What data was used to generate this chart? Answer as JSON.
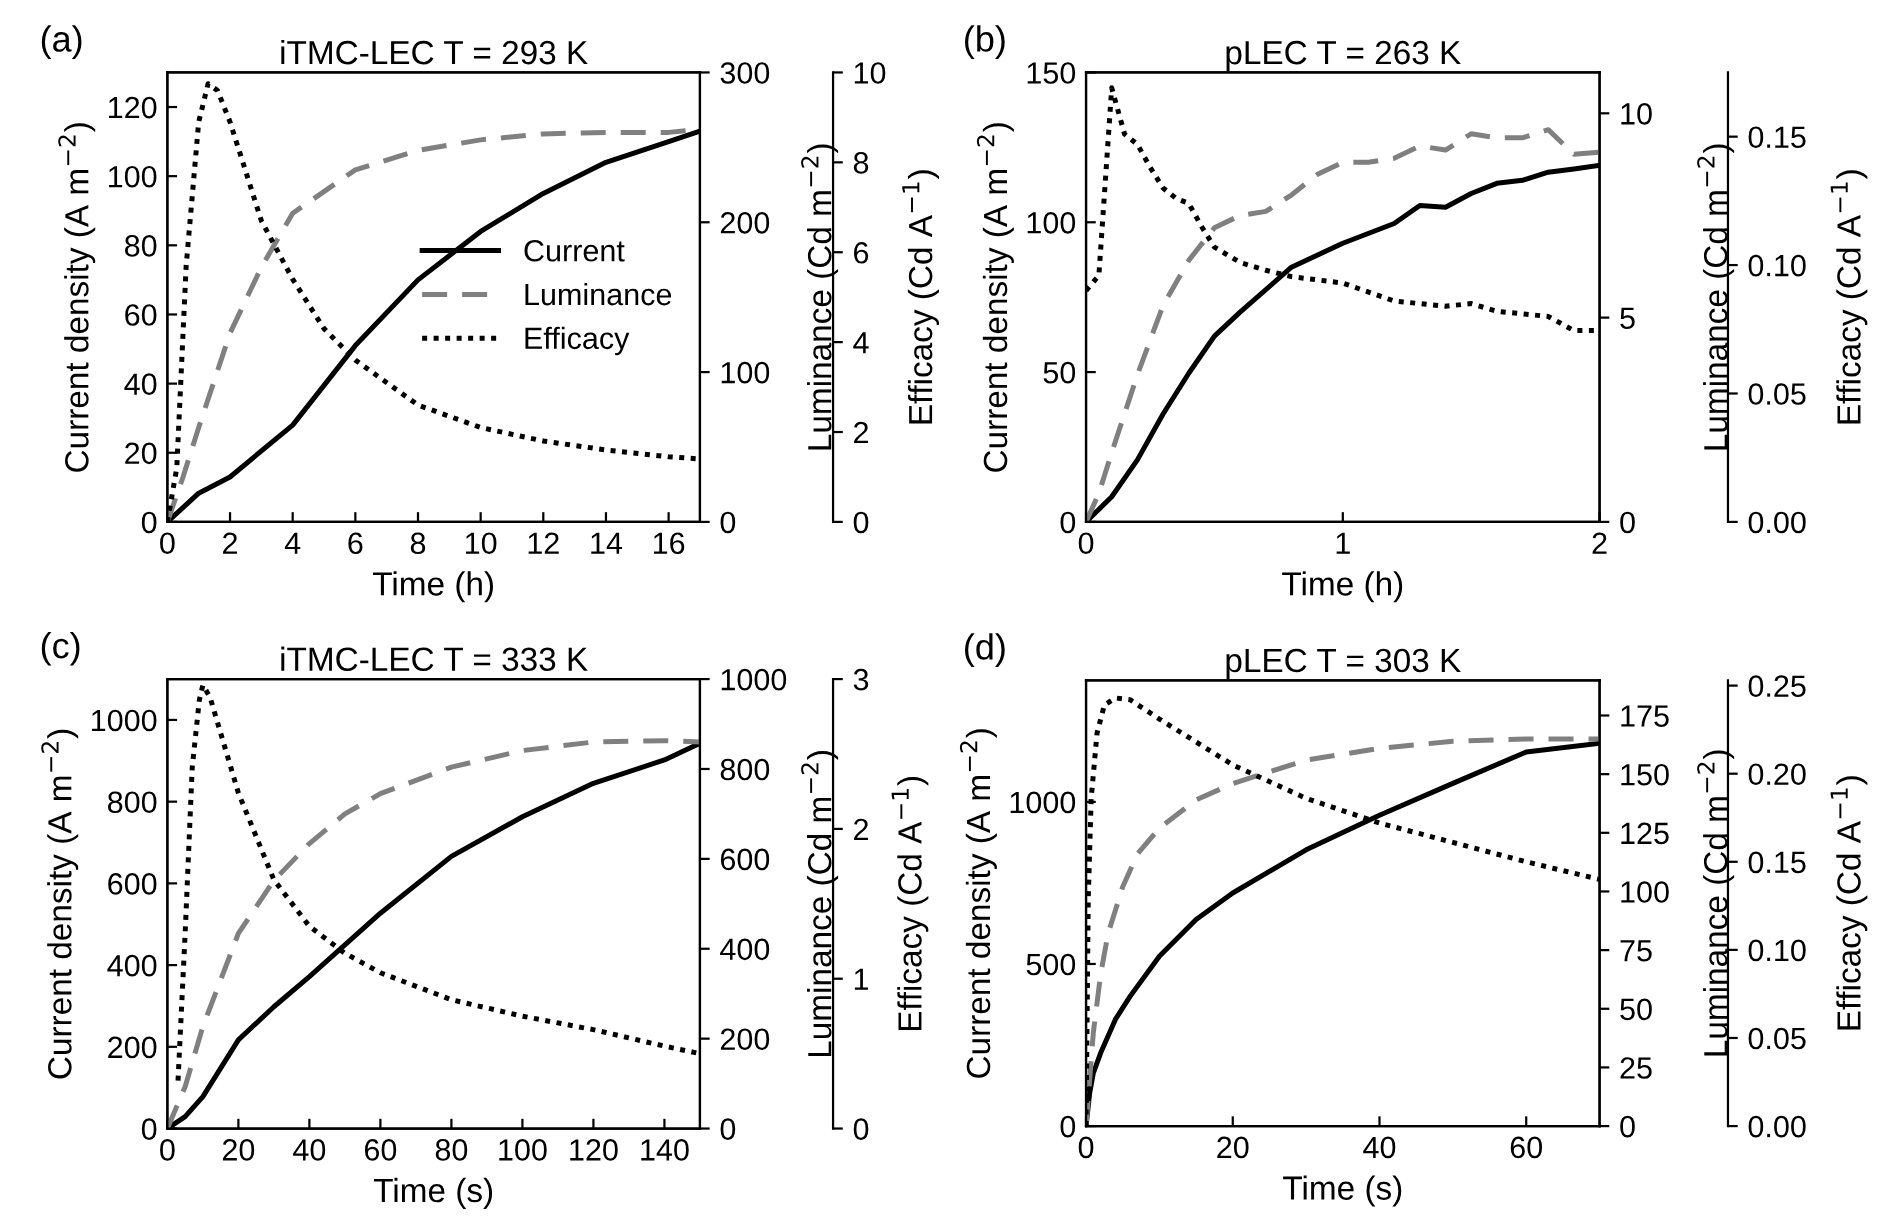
{
  "chart_data": [
    {
      "type": "line",
      "title": "iTMC-LEC T = 293 K",
      "xlabel": "Time (h)",
      "ylabel": "Current density (A m$^{−2}$)",
      "y2label": "Luminance (Cd m$^{−2}$)",
      "y3label": "Efficacy (Cd A$^{−1}$)",
      "annotations": [
        "(a)"
      ],
      "legend": "center right",
      "xlim": [
        0,
        17
      ],
      "xticks": [
        0,
        2,
        4,
        6,
        8,
        10,
        12,
        14,
        16
      ],
      "ylim": [
        0,
        130
      ],
      "yticks": [
        0,
        20,
        40,
        60,
        80,
        100,
        120
      ],
      "y2lim": [
        0,
        300
      ],
      "y2ticks": [
        0,
        100,
        200,
        300
      ],
      "y3lim": [
        0,
        10
      ],
      "y3ticks": [
        0,
        2,
        4,
        6,
        8,
        10
      ],
      "series": [
        {
          "name": "Current",
          "color": "#000000",
          "line_style": "solid",
          "x": [
            0,
            1,
            2,
            4,
            6,
            8,
            10,
            12,
            14,
            16,
            17
          ],
          "values": [
            0,
            8.3,
            13,
            28,
            51,
            70,
            84,
            95,
            104,
            110,
            113
          ]
        },
        {
          "name": "Luminance",
          "color": "#808080",
          "line_style": "dashed",
          "axis": "y2",
          "x": [
            0,
            0.5,
            1,
            2,
            3,
            4,
            6,
            8,
            10,
            12,
            14,
            16,
            17
          ],
          "values": [
            0,
            30,
            63,
            126,
            170,
            206,
            235,
            248,
            255,
            259,
            260,
            260,
            262
          ]
        },
        {
          "name": "Efficacy",
          "color": "#000000",
          "line_style": "dotted",
          "axis": "y3",
          "x": [
            0,
            0.3,
            0.6,
            1,
            1.3,
            1.6,
            2,
            3,
            4,
            5,
            6,
            8,
            10,
            12,
            14,
            16,
            17
          ],
          "values": [
            0,
            1.2,
            5.7,
            8.9,
            9.75,
            9.6,
            8.9,
            6.7,
            5.4,
            4.3,
            3.6,
            2.6,
            2.1,
            1.8,
            1.6,
            1.45,
            1.4
          ]
        }
      ]
    },
    {
      "type": "line",
      "title": "pLEC T = 263 K",
      "xlabel": "Time (h)",
      "ylabel": "Current density (A m$^{−2}$)",
      "y2label": "Luminance (Cd m$^{−2}$)",
      "y3label": "Efficacy (Cd A$^{−1}$)",
      "annotations": [
        "(b)"
      ],
      "xlim": [
        0,
        2
      ],
      "xticks": [
        0,
        1,
        2
      ],
      "ylim": [
        0,
        150
      ],
      "yticks": [
        0,
        50,
        100,
        150
      ],
      "y2lim": [
        0,
        11
      ],
      "y2ticks": [
        0,
        5,
        10
      ],
      "y3lim": [
        0,
        0.175
      ],
      "y3ticks": [
        {
          "value": 0,
          "label": "0.00"
        },
        {
          "value": 0.05,
          "label": "0.05"
        },
        {
          "value": 0.1,
          "label": "0.10"
        },
        {
          "value": 0.15,
          "label": "0.15"
        }
      ],
      "series": [
        {
          "color": "#000000",
          "line_style": "solid",
          "x": [
            0,
            0.1,
            0.2,
            0.3,
            0.4,
            0.5,
            0.6,
            0.8,
            1,
            1.2,
            1.3,
            1.4,
            1.5,
            1.6,
            1.7,
            1.8,
            1.9,
            2
          ],
          "values": [
            0,
            8.4,
            20.7,
            36,
            49.6,
            62,
            70,
            85,
            93,
            99.6,
            105.6,
            105,
            109.6,
            113,
            114,
            116.7,
            117.8,
            119
          ]
        },
        {
          "color": "#808080",
          "line_style": "dashed",
          "axis": "y2",
          "x": [
            0,
            0.05,
            0.1,
            0.2,
            0.3,
            0.4,
            0.5,
            0.6,
            0.7,
            0.8,
            0.9,
            1,
            1.1,
            1.2,
            1.3,
            1.4,
            1.5,
            1.6,
            1.7,
            1.8,
            1.9,
            2
          ],
          "values": [
            0,
            0.7,
            1.7,
            3.6,
            5.3,
            6.4,
            7.2,
            7.5,
            7.6,
            8.0,
            8.5,
            8.8,
            8.8,
            8.9,
            9.2,
            9.1,
            9.5,
            9.4,
            9.4,
            9.6,
            9.0,
            9.05
          ]
        },
        {
          "color": "#000000",
          "line_style": "dotted",
          "axis": "y3",
          "x": [
            0,
            0.05,
            0.1,
            0.15,
            0.2,
            0.25,
            0.3,
            0.35,
            0.4,
            0.45,
            0.5,
            0.6,
            0.7,
            0.8,
            1,
            1.2,
            1.4,
            1.5,
            1.6,
            1.8,
            1.9,
            2
          ],
          "values": [
            0.09,
            0.096,
            0.169,
            0.151,
            0.147,
            0.138,
            0.13,
            0.126,
            0.124,
            0.115,
            0.107,
            0.101,
            0.098,
            0.0955,
            0.093,
            0.086,
            0.084,
            0.085,
            0.082,
            0.08,
            0.0745,
            0.0745
          ]
        }
      ]
    },
    {
      "type": "line",
      "title": "iTMC-LEC T = 333 K",
      "xlabel": "Time (s)",
      "ylabel": "Current density (A m$^{−2}$)",
      "y2label": "Luminance (Cd m$^{−2}$)",
      "y3label": "Efficacy (Cd A$^{−1}$)",
      "annotations": [
        "(c)"
      ],
      "xlim": [
        0,
        150
      ],
      "xticks": [
        0,
        20,
        40,
        60,
        80,
        100,
        120,
        140
      ],
      "ylim": [
        0,
        1100
      ],
      "yticks": [
        0,
        200,
        400,
        600,
        800,
        1000
      ],
      "y2lim": [
        0,
        1000
      ],
      "y2ticks": [
        0,
        200,
        400,
        600,
        800,
        1000
      ],
      "y3lim": [
        0,
        3
      ],
      "y3ticks": [
        0,
        1,
        2,
        3
      ],
      "series": [
        {
          "color": "#000000",
          "line_style": "solid",
          "x": [
            0,
            5,
            10,
            20,
            30,
            40,
            60,
            80,
            100,
            120,
            140,
            150
          ],
          "values": [
            0,
            29,
            78,
            217,
            298,
            372,
            527,
            666,
            763,
            845,
            902,
            943
          ]
        },
        {
          "color": "#808080",
          "line_style": "dashed",
          "axis": "y2",
          "x": [
            0,
            5,
            10,
            20,
            30,
            40,
            50,
            60,
            80,
            100,
            120,
            140,
            150
          ],
          "values": [
            0,
            93,
            227,
            434,
            552,
            634,
            700,
            745,
            804,
            841,
            860,
            863,
            860
          ]
        },
        {
          "color": "#000000",
          "line_style": "dotted",
          "axis": "y3",
          "x": [
            3,
            5,
            7,
            9,
            10,
            12,
            15,
            20,
            30,
            40,
            50,
            60,
            80,
            100,
            120,
            140,
            150
          ],
          "values": [
            0.32,
            1.3,
            2.41,
            2.86,
            2.96,
            2.88,
            2.64,
            2.24,
            1.66,
            1.35,
            1.17,
            1.04,
            0.86,
            0.75,
            0.66,
            0.55,
            0.5
          ]
        }
      ]
    },
    {
      "type": "line",
      "title": "pLEC T = 303 K",
      "xlabel": "Time (s)",
      "ylabel": "Current density (A m$^{−2}$)",
      "y2label": "Luminance (Cd m$^{−2}$)",
      "y3label": "Efficacy (Cd A$^{−1}$)",
      "annotations": [
        "(d)"
      ],
      "xlim": [
        0,
        70
      ],
      "xticks": [
        0,
        20,
        40,
        60
      ],
      "ylim": [
        0,
        1375
      ],
      "yticks": [
        0,
        500,
        1000
      ],
      "y2lim": [
        0,
        190
      ],
      "y2ticks": [
        0,
        25,
        50,
        75,
        100,
        125,
        150,
        175
      ],
      "y3lim": [
        0,
        0.253
      ],
      "y3ticks": [
        {
          "value": 0,
          "label": "0.00"
        },
        {
          "value": 0.05,
          "label": "0.05"
        },
        {
          "value": 0.1,
          "label": "0.10"
        },
        {
          "value": 0.15,
          "label": "0.15"
        },
        {
          "value": 0.2,
          "label": "0.20"
        },
        {
          "value": 0.25,
          "label": "0.25"
        }
      ],
      "series": [
        {
          "color": "#000000",
          "line_style": "solid",
          "x": [
            0,
            0.5,
            1,
            2,
            4,
            6,
            10,
            15,
            20,
            30,
            40,
            50,
            60,
            70
          ],
          "values": [
            0,
            103,
            164,
            226,
            329,
            400,
            524,
            637,
            719,
            852,
            959,
            1057,
            1154,
            1181
          ]
        },
        {
          "color": "#808080",
          "line_style": "dashed",
          "axis": "y2",
          "x": [
            0,
            0.5,
            1,
            2,
            3,
            5,
            7,
            10,
            15,
            20,
            30,
            40,
            50,
            60,
            70
          ],
          "values": [
            0,
            20,
            40,
            65,
            82,
            102,
            116,
            127,
            139,
            146,
            156,
            161,
            164,
            165,
            165
          ]
        },
        {
          "color": "#000000",
          "line_style": "dotted",
          "axis": "y3",
          "x": [
            0,
            0.3,
            0.7,
            1.5,
            2.5,
            4,
            6,
            10,
            15,
            20,
            30,
            40,
            50,
            60,
            70
          ],
          "values": [
            0,
            0.129,
            0.186,
            0.223,
            0.239,
            0.243,
            0.242,
            0.231,
            0.218,
            0.205,
            0.186,
            0.172,
            0.161,
            0.15,
            0.14
          ]
        }
      ]
    }
  ]
}
